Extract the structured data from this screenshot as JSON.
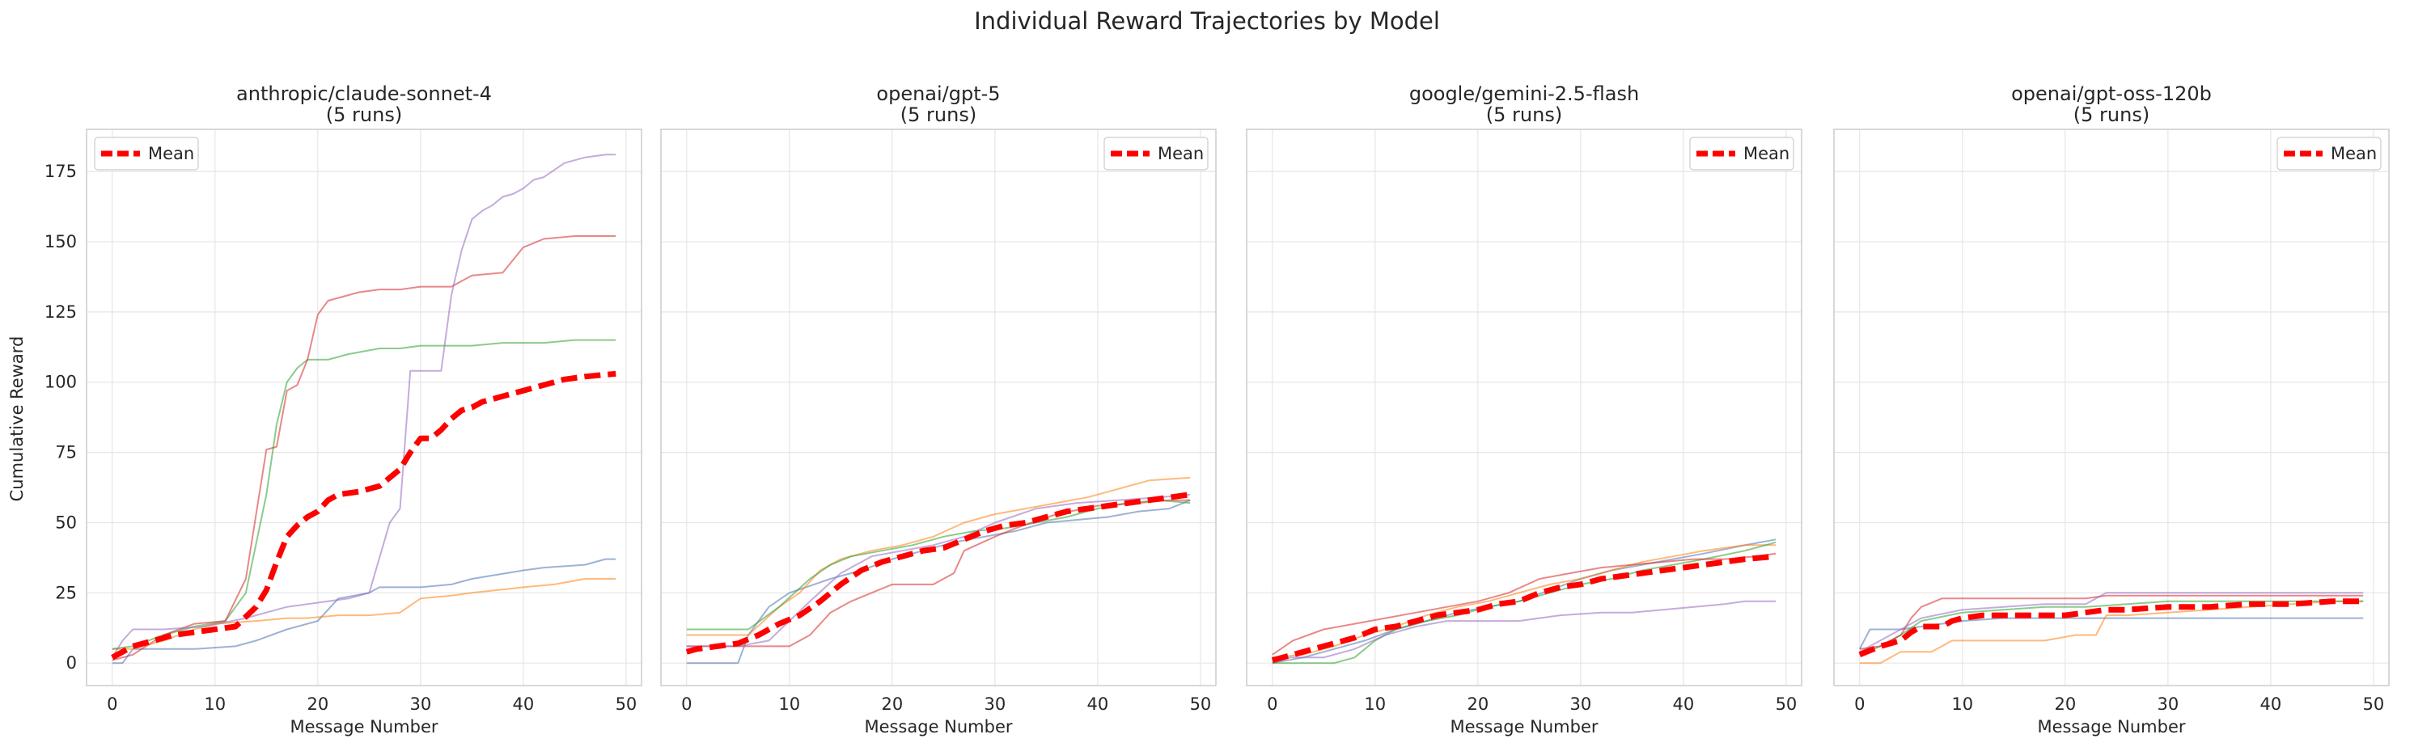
{
  "figure": {
    "suptitle": "Individual Reward Trajectories by Model",
    "ylabel": "Cumulative Reward",
    "xlabel": "Message Number",
    "shared_y": true
  },
  "colors": {
    "run_1": "#4c72b0",
    "run_2": "#ff7f0e",
    "run_3": "#2ca02c",
    "run_4": "#d62728",
    "run_5": "#9467bd",
    "mean": "#ff0000",
    "grid": "#e6e6e6",
    "spine": "#cccccc"
  },
  "chart_data": [
    {
      "type": "line",
      "title": "anthropic/claude-sonnet-4",
      "subtitle": "(5 runs)",
      "xlabel": "Message Number",
      "ylabel": "Cumulative Reward",
      "xlim": [
        -2.5,
        51.5
      ],
      "ylim": [
        -8,
        190
      ],
      "xticks": [
        0,
        10,
        20,
        30,
        40,
        50
      ],
      "yticks": [
        0,
        25,
        50,
        75,
        100,
        125,
        150,
        175
      ],
      "grid": true,
      "legend": "upper left",
      "legend_entries": [
        "Mean"
      ],
      "series": [
        {
          "x": [
            0,
            1,
            2,
            5,
            8,
            12,
            14,
            17,
            20,
            22,
            25,
            26,
            28,
            30,
            33,
            35,
            40,
            42,
            46,
            48,
            49
          ],
          "y": [
            0,
            0,
            5,
            5,
            5,
            6,
            8,
            12,
            15,
            23,
            25,
            27,
            27,
            27,
            28,
            30,
            33,
            34,
            35,
            37,
            37
          ]
        },
        {
          "x": [
            0,
            2,
            5,
            8,
            10,
            14,
            17,
            19,
            22,
            25,
            28,
            30,
            33,
            35,
            40,
            43,
            46,
            49
          ],
          "y": [
            5,
            5,
            8,
            12,
            14,
            15,
            16,
            16,
            17,
            17,
            18,
            23,
            24,
            25,
            27,
            28,
            30,
            30
          ]
        },
        {
          "x": [
            0,
            2,
            5,
            8,
            11,
            13,
            15,
            16,
            17,
            18,
            19,
            21,
            23,
            26,
            28,
            30,
            33,
            35,
            38,
            42,
            45,
            49
          ],
          "y": [
            5,
            6,
            10,
            13,
            15,
            25,
            60,
            85,
            100,
            105,
            108,
            108,
            110,
            112,
            112,
            113,
            113,
            113,
            114,
            114,
            115,
            115
          ]
        },
        {
          "x": [
            0,
            2,
            5,
            8,
            11,
            13,
            15,
            16,
            17,
            18,
            19,
            20,
            21,
            22,
            24,
            26,
            28,
            30,
            33,
            34,
            35,
            38,
            40,
            42,
            45,
            49
          ],
          "y": [
            1,
            3,
            10,
            14,
            15,
            30,
            76,
            77,
            97,
            99,
            108,
            124,
            129,
            130,
            132,
            133,
            133,
            134,
            134,
            136,
            138,
            139,
            148,
            151,
            152,
            152
          ]
        },
        {
          "x": [
            0,
            1,
            2,
            5,
            9,
            13,
            17,
            19,
            21,
            23,
            25,
            27,
            28,
            29,
            30,
            32,
            33,
            34,
            35,
            36,
            37,
            38,
            39,
            40,
            41,
            42,
            44,
            46,
            48,
            49
          ],
          "y": [
            2,
            8,
            12,
            12,
            13,
            16,
            20,
            21,
            22,
            23,
            25,
            50,
            55,
            104,
            104,
            104,
            131,
            147,
            158,
            161,
            163,
            166,
            167,
            169,
            172,
            173,
            178,
            180,
            181,
            181
          ]
        }
      ],
      "mean": {
        "name": "Mean",
        "x": [
          0,
          2,
          4,
          6,
          8,
          10,
          12,
          14,
          15,
          16,
          17,
          18,
          19,
          20,
          21,
          22,
          24,
          26,
          28,
          29,
          30,
          31,
          32,
          33,
          34,
          35,
          36,
          38,
          40,
          42,
          44,
          46,
          49
        ],
        "y": [
          2,
          6,
          8,
          10,
          11,
          12,
          13,
          20,
          26,
          36,
          45,
          49,
          52,
          54,
          58,
          60,
          61,
          63,
          69,
          75,
          80,
          80,
          83,
          87,
          90,
          91,
          93,
          95,
          97,
          99,
          101,
          102,
          103
        ]
      }
    },
    {
      "type": "line",
      "title": "openai/gpt-5",
      "subtitle": "(5 runs)",
      "xlabel": "Message Number",
      "ylabel": "",
      "xlim": [
        -2.5,
        51.5
      ],
      "ylim": [
        -8,
        190
      ],
      "xticks": [
        0,
        10,
        20,
        30,
        40,
        50
      ],
      "yticks": [
        0,
        25,
        50,
        75,
        100,
        125,
        150,
        175
      ],
      "grid": true,
      "legend": "upper right",
      "legend_entries": [
        "Mean"
      ],
      "series": [
        {
          "x": [
            0,
            5,
            6,
            8,
            10,
            14,
            17,
            20,
            23,
            26,
            29,
            32,
            35,
            38,
            41,
            44,
            47,
            49
          ],
          "y": [
            0,
            0,
            10,
            20,
            25,
            30,
            33,
            37,
            40,
            43,
            45,
            47,
            50,
            51,
            52,
            54,
            55,
            58
          ]
        },
        {
          "x": [
            0,
            6,
            9,
            11,
            13,
            15,
            18,
            21,
            24,
            27,
            30,
            33,
            36,
            39,
            42,
            45,
            49
          ],
          "y": [
            10,
            10,
            20,
            25,
            33,
            37,
            40,
            42,
            45,
            50,
            53,
            55,
            57,
            59,
            62,
            65,
            66
          ]
        },
        {
          "x": [
            0,
            6,
            9,
            12,
            14,
            16,
            19,
            22,
            25,
            28,
            31,
            34,
            37,
            40,
            43,
            46,
            49
          ],
          "y": [
            12,
            12,
            20,
            30,
            35,
            38,
            40,
            42,
            45,
            47,
            48,
            50,
            52,
            55,
            57,
            58,
            57
          ]
        },
        {
          "x": [
            0,
            8,
            10,
            12,
            14,
            16,
            18,
            20,
            22,
            24,
            26,
            27,
            30,
            32,
            36,
            40,
            44,
            47,
            49
          ],
          "y": [
            6,
            6,
            6,
            10,
            18,
            22,
            25,
            28,
            28,
            28,
            32,
            40,
            45,
            48,
            53,
            56,
            57,
            58,
            58
          ]
        },
        {
          "x": [
            0,
            5,
            8,
            10,
            12,
            15,
            18,
            21,
            24,
            27,
            30,
            34,
            38,
            42,
            46,
            49
          ],
          "y": [
            6,
            6,
            8,
            15,
            22,
            32,
            38,
            40,
            42,
            45,
            50,
            55,
            57,
            58,
            59,
            60
          ]
        }
      ],
      "mean": {
        "name": "Mean",
        "x": [
          0,
          1,
          3,
          5,
          7,
          9,
          11,
          13,
          15,
          17,
          19,
          21,
          23,
          25,
          27,
          29,
          31,
          33,
          35,
          37,
          39,
          41,
          43,
          45,
          47,
          49
        ],
        "y": [
          4,
          5,
          6,
          7,
          10,
          14,
          17,
          22,
          28,
          33,
          36,
          38,
          40,
          41,
          44,
          47,
          49,
          50,
          52,
          54,
          55,
          56,
          57,
          58,
          59,
          60
        ]
      }
    },
    {
      "type": "line",
      "title": "google/gemini-2.5-flash",
      "subtitle": "(5 runs)",
      "xlabel": "Message Number",
      "ylabel": "",
      "xlim": [
        -2.5,
        51.5
      ],
      "ylim": [
        -8,
        190
      ],
      "xticks": [
        0,
        10,
        20,
        30,
        40,
        50
      ],
      "yticks": [
        0,
        25,
        50,
        75,
        100,
        125,
        150,
        175
      ],
      "grid": true,
      "legend": "upper right",
      "legend_entries": [
        "Mean"
      ],
      "series": [
        {
          "x": [
            0,
            3,
            6,
            9,
            12,
            15,
            18,
            21,
            24,
            27,
            30,
            33,
            36,
            39,
            42,
            46,
            49
          ],
          "y": [
            0,
            2,
            5,
            8,
            12,
            15,
            18,
            20,
            22,
            26,
            30,
            33,
            35,
            37,
            39,
            42,
            44
          ]
        },
        {
          "x": [
            0,
            3,
            6,
            9,
            12,
            15,
            18,
            21,
            24,
            27,
            30,
            33,
            36,
            39,
            42,
            46,
            49
          ],
          "y": [
            2,
            3,
            6,
            10,
            13,
            17,
            20,
            22,
            25,
            28,
            30,
            33,
            36,
            38,
            40,
            42,
            42
          ]
        },
        {
          "x": [
            0,
            6,
            8,
            10,
            12,
            15,
            18,
            21,
            24,
            27,
            30,
            33,
            36,
            39,
            42,
            46,
            49
          ],
          "y": [
            0,
            0,
            2,
            8,
            12,
            15,
            17,
            20,
            22,
            25,
            28,
            30,
            33,
            35,
            37,
            40,
            43
          ]
        },
        {
          "x": [
            0,
            2,
            5,
            8,
            11,
            14,
            17,
            20,
            23,
            26,
            29,
            32,
            35,
            38,
            41,
            44,
            47,
            49
          ],
          "y": [
            3,
            8,
            12,
            14,
            16,
            18,
            20,
            22,
            25,
            30,
            32,
            34,
            35,
            36,
            37,
            37,
            38,
            39
          ]
        },
        {
          "x": [
            0,
            5,
            8,
            11,
            14,
            17,
            20,
            24,
            28,
            32,
            35,
            38,
            41,
            44,
            46,
            49
          ],
          "y": [
            2,
            2,
            5,
            10,
            13,
            15,
            15,
            15,
            17,
            18,
            18,
            19,
            20,
            21,
            22,
            22
          ]
        }
      ],
      "mean": {
        "name": "Mean",
        "x": [
          0,
          2,
          4,
          6,
          8,
          10,
          12,
          14,
          16,
          18,
          20,
          22,
          24,
          26,
          28,
          30,
          32,
          34,
          36,
          38,
          40,
          42,
          44,
          46,
          49
        ],
        "y": [
          1,
          3,
          5,
          7,
          9,
          12,
          13,
          15,
          17,
          18,
          19,
          21,
          22,
          25,
          27,
          28,
          30,
          31,
          32,
          33,
          34,
          35,
          36,
          37,
          38
        ]
      }
    },
    {
      "type": "line",
      "title": "openai/gpt-oss-120b",
      "subtitle": "(5 runs)",
      "xlabel": "Message Number",
      "ylabel": "",
      "xlim": [
        -2.5,
        51.5
      ],
      "ylim": [
        -8,
        190
      ],
      "xticks": [
        0,
        10,
        20,
        30,
        40,
        50
      ],
      "yticks": [
        0,
        25,
        50,
        75,
        100,
        125,
        150,
        175
      ],
      "grid": true,
      "legend": "upper right",
      "legend_entries": [
        "Mean"
      ],
      "series": [
        {
          "x": [
            0,
            1,
            2,
            4,
            6,
            10,
            14,
            18,
            22,
            26,
            30,
            34,
            38,
            42,
            46,
            49
          ],
          "y": [
            5,
            12,
            12,
            12,
            13,
            15,
            16,
            16,
            16,
            16,
            16,
            16,
            16,
            16,
            16,
            16
          ]
        },
        {
          "x": [
            0,
            2,
            4,
            6,
            7,
            9,
            12,
            15,
            18,
            21,
            23,
            24,
            26,
            30,
            34,
            38,
            42,
            46,
            49
          ],
          "y": [
            0,
            0,
            4,
            4,
            4,
            8,
            8,
            8,
            8,
            10,
            10,
            17,
            17,
            18,
            19,
            20,
            21,
            22,
            22
          ]
        },
        {
          "x": [
            0,
            2,
            4,
            6,
            10,
            14,
            18,
            22,
            26,
            30,
            34,
            38,
            42,
            46,
            49
          ],
          "y": [
            3,
            6,
            10,
            15,
            18,
            19,
            20,
            20,
            21,
            22,
            22,
            22,
            22,
            22,
            22
          ]
        },
        {
          "x": [
            0,
            2,
            4,
            5,
            6,
            8,
            10,
            14,
            18,
            22,
            24,
            28,
            32,
            36,
            40,
            44,
            49
          ],
          "y": [
            5,
            6,
            10,
            16,
            20,
            23,
            23,
            23,
            23,
            23,
            24,
            24,
            24,
            24,
            24,
            24,
            24
          ]
        },
        {
          "x": [
            0,
            2,
            4,
            6,
            10,
            14,
            18,
            22,
            24,
            26,
            30,
            34,
            38,
            42,
            46,
            49
          ],
          "y": [
            4,
            8,
            12,
            16,
            19,
            20,
            21,
            21,
            25,
            25,
            25,
            25,
            25,
            25,
            25,
            25
          ]
        }
      ],
      "mean": {
        "name": "Mean",
        "x": [
          0,
          2,
          4,
          5,
          6,
          8,
          9,
          10,
          12,
          14,
          16,
          18,
          20,
          22,
          24,
          26,
          30,
          34,
          38,
          42,
          46,
          49
        ],
        "y": [
          3,
          6,
          8,
          11,
          13,
          13,
          15,
          16,
          17,
          17,
          17,
          17,
          17,
          18,
          19,
          19,
          20,
          20,
          21,
          21,
          22,
          22
        ]
      }
    }
  ]
}
